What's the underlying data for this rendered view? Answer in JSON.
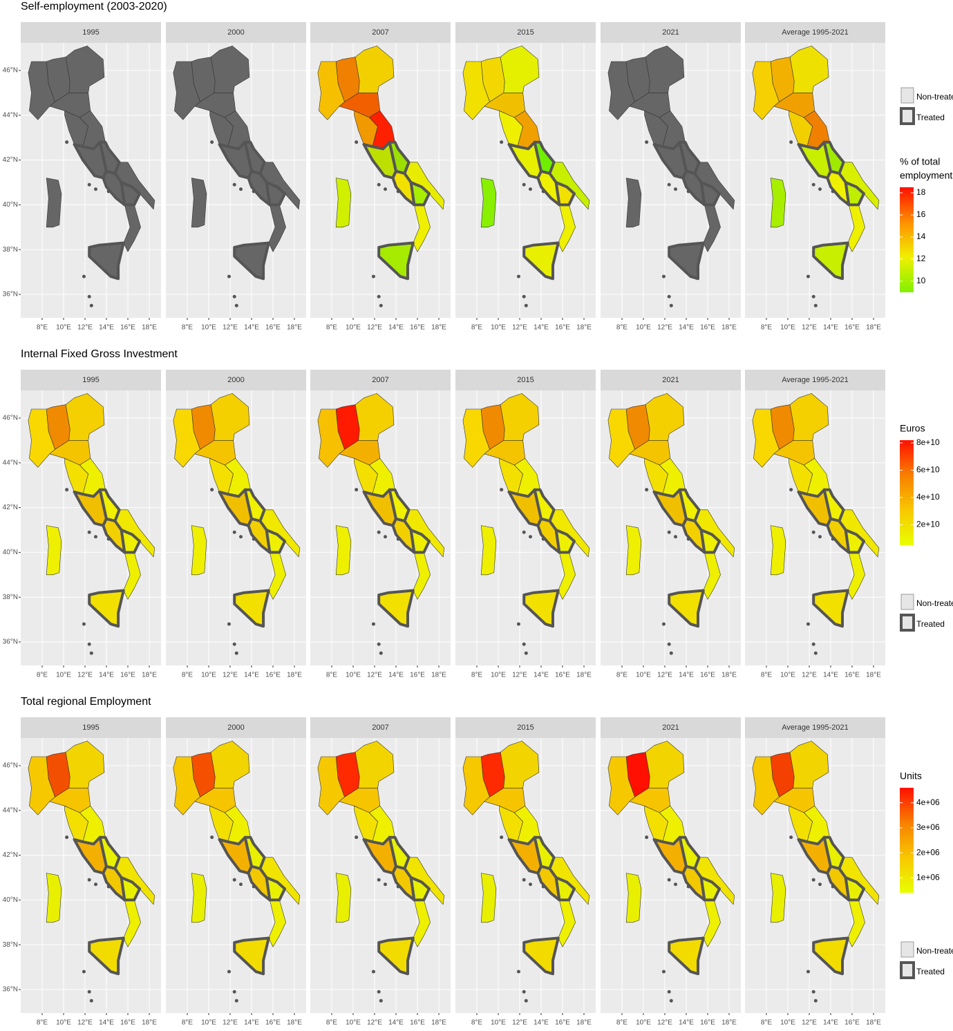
{
  "axes": {
    "lat": [
      {
        "value": 36,
        "label": "36°N"
      },
      {
        "value": 38,
        "label": "38°N"
      },
      {
        "value": 40,
        "label": "40°N"
      },
      {
        "value": 42,
        "label": "42°N"
      },
      {
        "value": 44,
        "label": "44°N"
      },
      {
        "value": 46,
        "label": "46°N"
      }
    ],
    "lon": [
      {
        "value": 8,
        "label": "8°E"
      },
      {
        "value": 10,
        "label": "10°E"
      },
      {
        "value": 12,
        "label": "12°E"
      },
      {
        "value": 14,
        "label": "14°E"
      },
      {
        "value": 16,
        "label": "16°E"
      },
      {
        "value": 18,
        "label": "18°E"
      }
    ]
  },
  "rows": [
    {
      "title": "Self-employment (2003-2020)",
      "facets": [
        "1995",
        "2000",
        "2007",
        "2015",
        "2021",
        "Average 1995-2021"
      ],
      "legend": {
        "title": [
          "% of total",
          "employment"
        ],
        "lim": [
          9,
          18.5
        ],
        "ticks": [
          10,
          12,
          14,
          16,
          18
        ],
        "colors": [
          "#80f000",
          "#f0f000",
          "#ff9000",
          "#ff1000"
        ],
        "key": [
          "Non-treated",
          "Treated"
        ]
      }
    },
    {
      "title": "Internal Fixed Gross Investment",
      "facets": [
        "1995",
        "2000",
        "2007",
        "2015",
        "2021",
        "Average 1995-2021"
      ],
      "legend": {
        "title": [
          "Euros"
        ],
        "lim": [
          5000000000,
          82000000000
        ],
        "ticks": [
          {
            "value": 20000000000,
            "label": "2e+10"
          },
          {
            "value": 40000000000,
            "label": "4e+10"
          },
          {
            "value": 60000000000,
            "label": "6e+10"
          },
          {
            "value": 80000000000,
            "label": "8e+10"
          }
        ],
        "colors": [
          "#e8ff00",
          "#f8c800",
          "#f88000",
          "#ff1000"
        ],
        "key": [
          "Non-treated",
          "Treated"
        ]
      }
    },
    {
      "title": "Total regional Employment",
      "facets": [
        "1995",
        "2000",
        "2007",
        "2015",
        "2021",
        "Average 1995-2021"
      ],
      "legend": {
        "title": [
          "Units"
        ],
        "lim": [
          400000,
          4600000
        ],
        "ticks": [
          {
            "value": 1000000,
            "label": "1e+06"
          },
          {
            "value": 2000000,
            "label": "2e+06"
          },
          {
            "value": 3000000,
            "label": "3e+06"
          },
          {
            "value": 4000000,
            "label": "4e+06"
          }
        ],
        "colors": [
          "#e8ff00",
          "#f8c800",
          "#f88000",
          "#ff1000"
        ],
        "key": [
          "Non-treated",
          "Treated"
        ]
      }
    }
  ]
}
